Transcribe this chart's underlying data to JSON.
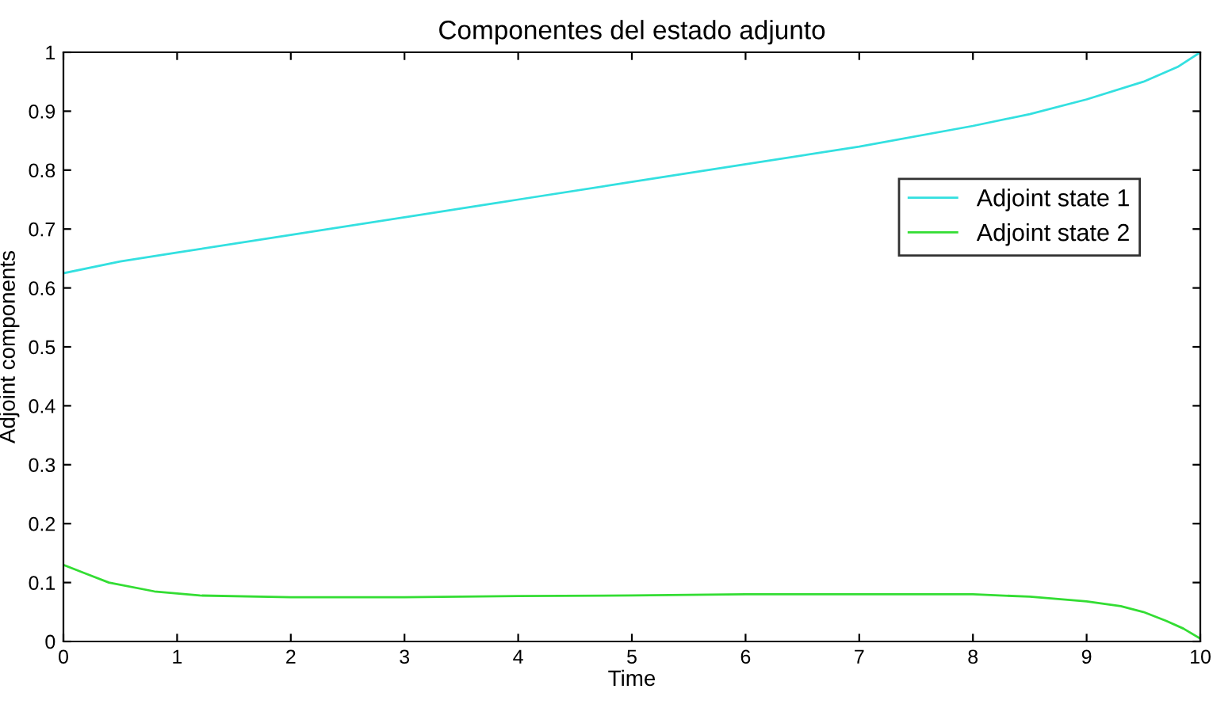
{
  "chart_data": {
    "type": "line",
    "title": "Componentes del estado adjunto",
    "xlabel": "Time",
    "ylabel": "Adjoint components",
    "xlim": [
      0,
      10
    ],
    "ylim": [
      0,
      1
    ],
    "xticks": [
      0,
      1,
      2,
      3,
      4,
      5,
      6,
      7,
      8,
      9,
      10
    ],
    "yticks": [
      0,
      0.1,
      0.2,
      0.3,
      0.4,
      0.5,
      0.6,
      0.7,
      0.8,
      0.9,
      1
    ],
    "grid": false,
    "legend": "right",
    "line_style": "solid",
    "marker": "none",
    "series": [
      {
        "name": "Adjoint state 1",
        "color": "#33e0e0",
        "x": [
          0,
          0.5,
          1,
          2,
          3,
          4,
          5,
          6,
          7,
          8,
          8.5,
          9,
          9.5,
          9.8,
          10
        ],
        "values": [
          0.625,
          0.645,
          0.66,
          0.69,
          0.72,
          0.75,
          0.78,
          0.81,
          0.84,
          0.875,
          0.895,
          0.92,
          0.95,
          0.975,
          1.0
        ]
      },
      {
        "name": "Adjoint state 2",
        "color": "#33dd33",
        "x": [
          0,
          0.2,
          0.4,
          0.8,
          1.2,
          2,
          3,
          4,
          5,
          6,
          7,
          8,
          8.5,
          9,
          9.3,
          9.5,
          9.7,
          9.85,
          10
        ],
        "values": [
          0.13,
          0.115,
          0.1,
          0.085,
          0.078,
          0.075,
          0.075,
          0.077,
          0.078,
          0.08,
          0.08,
          0.08,
          0.076,
          0.068,
          0.06,
          0.05,
          0.035,
          0.022,
          0.005
        ]
      }
    ]
  }
}
